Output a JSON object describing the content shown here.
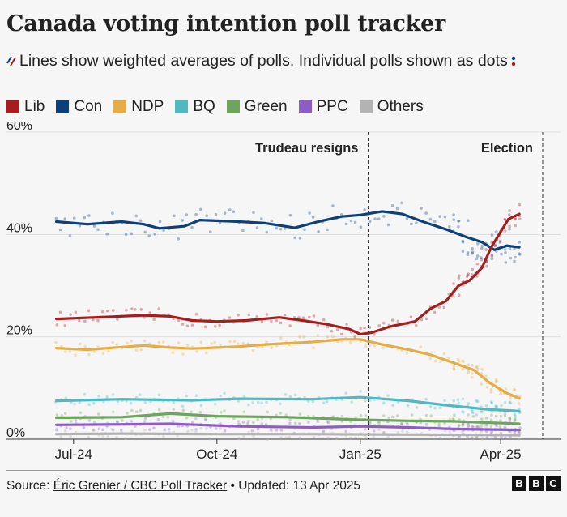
{
  "title": "Canada voting intention poll tracker",
  "subtitle": "Lines show weighted averages of polls. Individual polls shown as dots",
  "source_prefix": "Source: ",
  "source_link": "Éric Grenier / CBC Poll Tracker",
  "source_suffix": " • Updated: 13 Apr 2025",
  "logo_letters": [
    "B",
    "B",
    "C"
  ],
  "chart_data": {
    "type": "line",
    "title": "Canada voting intention poll tracker",
    "xlabel": "",
    "ylabel": "",
    "x_range": [
      "2024-06-15",
      "2025-04-28"
    ],
    "ylim": [
      0,
      60
    ],
    "y_ticks": [
      0,
      20,
      40,
      60
    ],
    "y_tick_labels": [
      "0%",
      "20%",
      "40%",
      "60%"
    ],
    "x_ticks": [
      "2024-07-01",
      "2024-10-01",
      "2025-01-01",
      "2025-04-01"
    ],
    "x_tick_labels": [
      "Jul-24",
      "Oct-24",
      "Jan-25",
      "Apr-25"
    ],
    "grid": true,
    "legend_position": "top",
    "annotations": [
      {
        "label": "Trudeau resigns",
        "date": "2025-01-06"
      },
      {
        "label": "Election",
        "date": "2025-04-28"
      }
    ],
    "series": [
      {
        "name": "Lib",
        "color": "#a51d1d",
        "points": [
          [
            "2024-06-20",
            23.5
          ],
          [
            "2024-07-15",
            23.8
          ],
          [
            "2024-08-15",
            24.2
          ],
          [
            "2024-09-01",
            24.0
          ],
          [
            "2024-09-15",
            23.2
          ],
          [
            "2024-10-01",
            23.0
          ],
          [
            "2024-10-20",
            23.2
          ],
          [
            "2024-11-10",
            23.8
          ],
          [
            "2024-11-25",
            23.2
          ],
          [
            "2024-12-10",
            22.5
          ],
          [
            "2024-12-25",
            21.5
          ],
          [
            "2025-01-01",
            20.5
          ],
          [
            "2025-01-08",
            20.8
          ],
          [
            "2025-01-20",
            22.0
          ],
          [
            "2025-02-05",
            23.0
          ],
          [
            "2025-02-15",
            25.5
          ],
          [
            "2025-02-25",
            27.0
          ],
          [
            "2025-03-05",
            30.0
          ],
          [
            "2025-03-12",
            31.0
          ],
          [
            "2025-03-20",
            33.5
          ],
          [
            "2025-03-26",
            37.5
          ],
          [
            "2025-04-01",
            40.5
          ],
          [
            "2025-04-06",
            43.0
          ],
          [
            "2025-04-13",
            44.0
          ]
        ]
      },
      {
        "name": "Con",
        "color": "#0d3f79",
        "points": [
          [
            "2024-06-20",
            42.5
          ],
          [
            "2024-07-10",
            42.0
          ],
          [
            "2024-08-01",
            42.5
          ],
          [
            "2024-08-15",
            42.0
          ],
          [
            "2024-08-25",
            41.2
          ],
          [
            "2024-09-10",
            41.6
          ],
          [
            "2024-09-20",
            42.8
          ],
          [
            "2024-10-15",
            42.5
          ],
          [
            "2024-11-01",
            42.2
          ],
          [
            "2024-11-20",
            41.3
          ],
          [
            "2024-12-05",
            42.5
          ],
          [
            "2024-12-20",
            43.5
          ],
          [
            "2025-01-01",
            43.8
          ],
          [
            "2025-01-15",
            44.5
          ],
          [
            "2025-01-28",
            44.0
          ],
          [
            "2025-02-10",
            42.5
          ],
          [
            "2025-02-25",
            41.0
          ],
          [
            "2025-03-10",
            39.5
          ],
          [
            "2025-03-20",
            38.5
          ],
          [
            "2025-03-28",
            37.0
          ],
          [
            "2025-04-05",
            37.8
          ],
          [
            "2025-04-13",
            37.5
          ]
        ]
      },
      {
        "name": "NDP",
        "color": "#e6ac45",
        "points": [
          [
            "2024-06-20",
            17.8
          ],
          [
            "2024-07-10",
            17.5
          ],
          [
            "2024-08-01",
            18.0
          ],
          [
            "2024-08-15",
            18.3
          ],
          [
            "2024-09-01",
            17.9
          ],
          [
            "2024-09-15",
            17.7
          ],
          [
            "2024-10-15",
            18.1
          ],
          [
            "2024-11-01",
            18.5
          ],
          [
            "2024-12-01",
            19.0
          ],
          [
            "2024-12-20",
            19.5
          ],
          [
            "2025-01-01",
            19.5
          ],
          [
            "2025-01-15",
            18.5
          ],
          [
            "2025-02-01",
            17.5
          ],
          [
            "2025-02-15",
            16.5
          ],
          [
            "2025-03-01",
            15.0
          ],
          [
            "2025-03-15",
            13.5
          ],
          [
            "2025-03-25",
            11.0
          ],
          [
            "2025-04-05",
            9.0
          ],
          [
            "2025-04-13",
            8.0
          ]
        ]
      },
      {
        "name": "BQ",
        "color": "#4fb8c1",
        "points": [
          [
            "2024-06-20",
            7.5
          ],
          [
            "2024-08-01",
            7.8
          ],
          [
            "2024-09-15",
            7.6
          ],
          [
            "2024-10-15",
            7.9
          ],
          [
            "2024-12-01",
            7.8
          ],
          [
            "2025-01-01",
            8.2
          ],
          [
            "2025-02-01",
            7.5
          ],
          [
            "2025-03-01",
            6.5
          ],
          [
            "2025-03-25",
            5.8
          ],
          [
            "2025-04-13",
            5.5
          ]
        ]
      },
      {
        "name": "Green",
        "color": "#6ea55c",
        "points": [
          [
            "2024-06-20",
            4.2
          ],
          [
            "2024-08-01",
            4.3
          ],
          [
            "2024-09-01",
            5.0
          ],
          [
            "2024-10-01",
            4.5
          ],
          [
            "2024-11-15",
            4.3
          ],
          [
            "2025-01-01",
            3.8
          ],
          [
            "2025-02-01",
            3.6
          ],
          [
            "2025-03-01",
            3.5
          ],
          [
            "2025-04-13",
            3.0
          ]
        ]
      },
      {
        "name": "PPC",
        "color": "#8f5cc6",
        "points": [
          [
            "2024-06-20",
            2.8
          ],
          [
            "2024-08-01",
            2.9
          ],
          [
            "2024-09-01",
            3.0
          ],
          [
            "2024-10-15",
            2.5
          ],
          [
            "2024-12-01",
            2.3
          ],
          [
            "2025-01-01",
            2.5
          ],
          [
            "2025-02-01",
            2.3
          ],
          [
            "2025-03-01",
            2.0
          ],
          [
            "2025-04-13",
            1.8
          ]
        ]
      },
      {
        "name": "Others",
        "color": "#b3b3b3",
        "points": [
          [
            "2024-06-20",
            1.0
          ],
          [
            "2024-08-01",
            1.1
          ],
          [
            "2024-10-01",
            1.0
          ],
          [
            "2024-12-01",
            1.0
          ],
          [
            "2025-02-01",
            0.9
          ],
          [
            "2025-04-13",
            0.8
          ]
        ]
      }
    ]
  }
}
